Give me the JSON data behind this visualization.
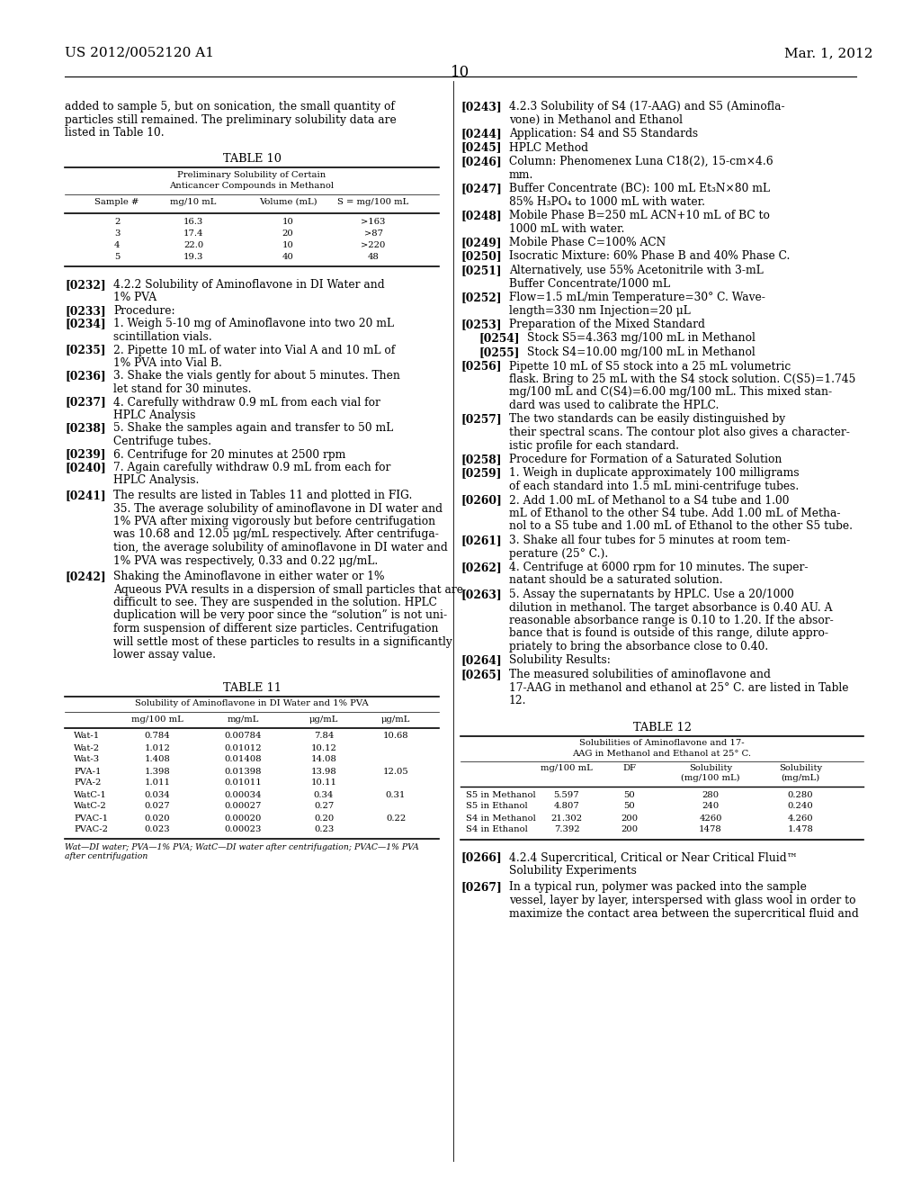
{
  "header_left": "US 2012/0052120 A1",
  "header_right": "Mar. 1, 2012",
  "page_number": "10",
  "bg_color": "#ffffff"
}
